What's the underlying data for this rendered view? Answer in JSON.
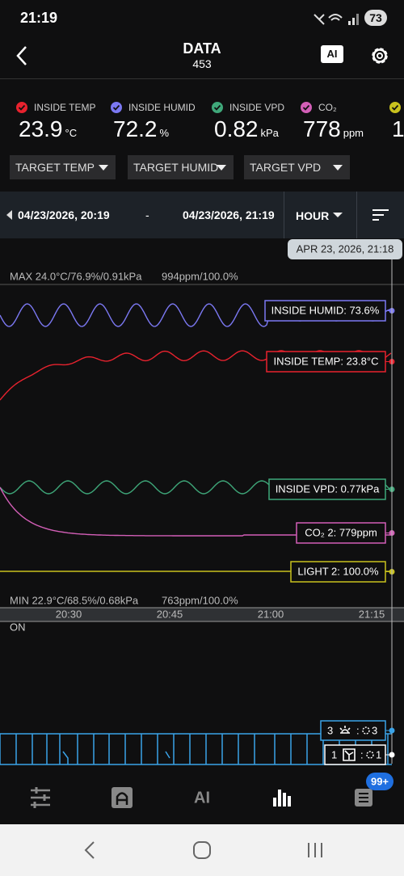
{
  "status_bar": {
    "time": "21:19",
    "battery": "73"
  },
  "header": {
    "title": "DATA",
    "subtitle": "453",
    "ai_button": "AI"
  },
  "sensors": [
    {
      "name": "INSIDE TEMP",
      "value": "23.9",
      "unit": "°C",
      "color": "#e8222e"
    },
    {
      "name": "INSIDE HUMID",
      "value": "72.2",
      "unit": "%",
      "color": "#7b78f2"
    },
    {
      "name": "INSIDE VPD",
      "value": "0.82",
      "unit": "kPa",
      "color": "#3fa87a"
    },
    {
      "name": "CO₂",
      "value": "778",
      "unit": "ppm",
      "color": "#d35fb7"
    },
    {
      "value": "1",
      "color": "#c9c21e"
    }
  ],
  "dropdowns": [
    "TARGET TEMP",
    "TARGET HUMID",
    "TARGET VPD"
  ],
  "range": {
    "start": "04/23/2026, 20:19",
    "separator": "-",
    "end": "04/23/2026, 21:19",
    "interval": "HOUR"
  },
  "chart": {
    "cursor_label": "APR 23, 2026, 21:18",
    "max_label": "MAX 24.0°C/76.9%/0.91kPa",
    "max_label_2": "994ppm/100.0%",
    "min_label": "MIN 22.9°C/68.5%/0.68kPa",
    "min_label_2": "763ppm/100.0%",
    "x_labels": [
      "20:30",
      "20:45",
      "21:00",
      "21:15"
    ],
    "tags": [
      "INSIDE HUMID: 73.6%",
      "INSIDE TEMP: 23.8°C",
      "INSIDE VPD: 0.77kPa",
      "CO₂ 2: 779ppm",
      "LIGHT 2: 100.0%"
    ]
  },
  "device_chart": {
    "on_label": "ON",
    "light_tag": {
      "left": "3",
      "colon": ":",
      "right": "3"
    },
    "fan_tag": {
      "left": "1",
      "colon": ":",
      "right": "1"
    }
  },
  "nav": {
    "ai": "AI",
    "badge": "99+"
  }
}
